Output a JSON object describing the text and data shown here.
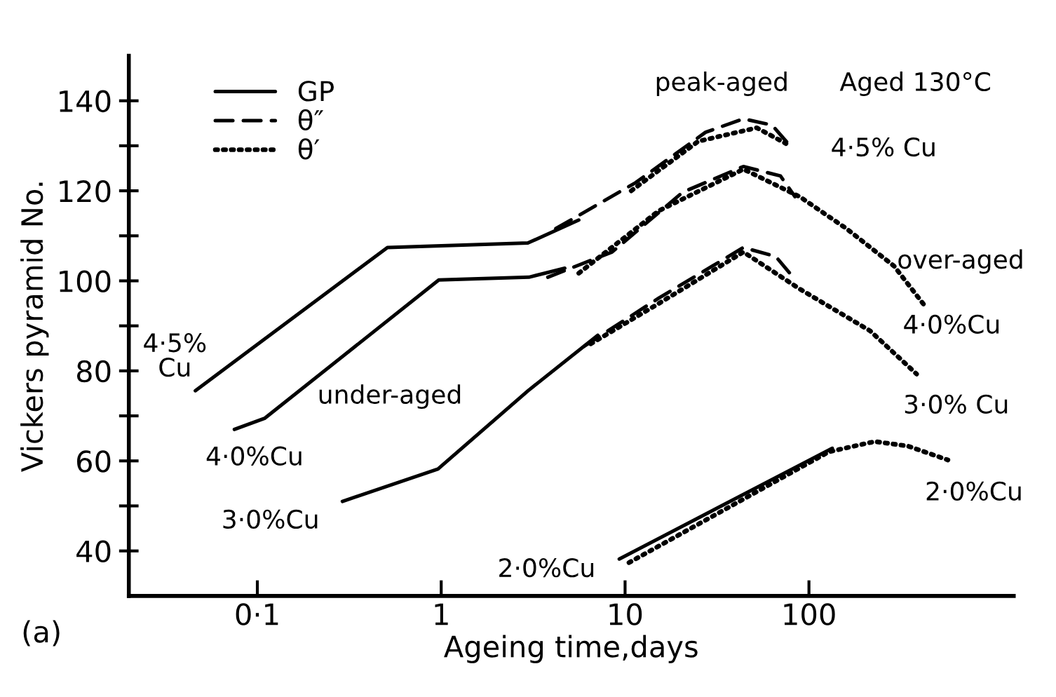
{
  "chart_data": {
    "type": "line",
    "xlabel": "Ageing time,days",
    "ylabel": "Vickers pyramid No.",
    "log": "x",
    "marker": "none",
    "legend": "top left",
    "grid": false,
    "xlim": [
      0.02,
      1300
    ],
    "xticks": [
      {
        "value": 0.1,
        "label": "0·1"
      },
      1,
      10,
      100
    ],
    "ylim": [
      30,
      150
    ],
    "yticks": [
      40,
      {
        "value": 50,
        "label": null
      },
      60,
      {
        "value": 70,
        "label": null
      },
      80,
      {
        "value": 90,
        "label": null
      },
      100,
      {
        "value": 110,
        "label": null
      },
      120,
      {
        "value": 130,
        "label": null
      },
      140
    ],
    "series": [
      {
        "name": "GP",
        "color": "#000000",
        "line_style": "solid",
        "x": [
          0.046,
          0.51,
          2.96,
          5.6
        ],
        "values": [
          75.6,
          107.4,
          108.4,
          113.5
        ]
      },
      {
        "name": "θ″",
        "color": "#000000",
        "line_style": "dashed",
        "x": [
          4.2,
          11.4,
          27.4,
          44,
          63,
          77
        ],
        "values": [
          111.6,
          121.8,
          133,
          136,
          134.6,
          130.5
        ]
      },
      {
        "name": "θ′",
        "color": "#000000",
        "line_style": "dotted",
        "x": [
          10.8,
          25,
          52,
          75
        ],
        "values": [
          120,
          131,
          134,
          130.5
        ]
      },
      {
        "color": "#000000",
        "line_style": "solid",
        "x": [
          0.075,
          0.11,
          0.97,
          3.0,
          4.7
        ],
        "values": [
          67,
          69.5,
          100.2,
          100.8,
          102.8
        ]
      },
      {
        "color": "#000000",
        "line_style": "dashed",
        "x": [
          3.8,
          8.5,
          20.6,
          44,
          70,
          84
        ],
        "values": [
          100.8,
          106.4,
          119.7,
          125.4,
          123.3,
          118.7
        ]
      },
      {
        "color": "#000000",
        "line_style": "dotted",
        "x": [
          5.6,
          15.3,
          44,
          89,
          160,
          290,
          435
        ],
        "values": [
          101.7,
          115.6,
          124.8,
          118.7,
          111.6,
          103.3,
          94
        ]
      },
      {
        "color": "#000000",
        "line_style": "solid",
        "x": [
          0.29,
          0.96,
          2.97,
          7.1
        ],
        "values": [
          51,
          58.2,
          75.6,
          87.9
        ]
      },
      {
        "color": "#000000",
        "line_style": "dashed",
        "x": [
          6,
          15.3,
          44,
          66,
          82
        ],
        "values": [
          85.5,
          96.2,
          107.4,
          105.4,
          100.8
        ]
      },
      {
        "color": "#000000",
        "line_style": "dotted",
        "x": [
          6.5,
          15.3,
          44,
          89,
          215,
          385
        ],
        "values": [
          86,
          95,
          106.4,
          98.2,
          88.9,
          79.3
        ]
      },
      {
        "color": "#000000",
        "line_style": "solid",
        "x": [
          9.3,
          134
        ],
        "values": [
          38.2,
          62.8
        ]
      },
      {
        "color": "#000000",
        "line_style": "dotted",
        "x": [
          10.5,
          128,
          228,
          345,
          570
        ],
        "values": [
          37.4,
          62,
          64.3,
          63.3,
          60.2
        ]
      }
    ],
    "annotations": [
      "4·5%\nCu",
      "4·0%Cu",
      "3·0%Cu",
      "2·0%Cu",
      "under-aged",
      "peak-aged",
      "Aged 130°C",
      "4·5% Cu",
      "over-aged",
      "4·0%Cu",
      "3·0% Cu",
      "2·0%Cu",
      "(a)"
    ]
  }
}
